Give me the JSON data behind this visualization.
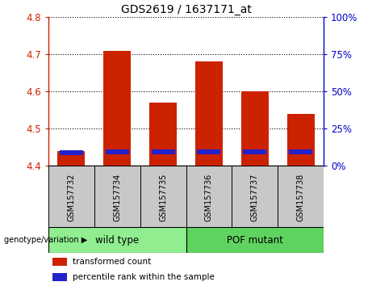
{
  "title": "GDS2619 / 1637171_at",
  "samples": [
    "GSM157732",
    "GSM157734",
    "GSM157735",
    "GSM157736",
    "GSM157737",
    "GSM157738"
  ],
  "red_values": [
    4.44,
    4.71,
    4.57,
    4.68,
    4.6,
    4.54
  ],
  "blue_values": [
    4.43,
    4.432,
    4.432,
    4.432,
    4.432,
    4.432
  ],
  "blue_heights": [
    0.012,
    0.012,
    0.012,
    0.012,
    0.012,
    0.012
  ],
  "ylim_left": [
    4.4,
    4.8
  ],
  "ylim_right": [
    0,
    100
  ],
  "yticks_left": [
    4.4,
    4.5,
    4.6,
    4.7,
    4.8
  ],
  "yticks_right": [
    0,
    25,
    50,
    75,
    100
  ],
  "bar_bottom": 4.4,
  "groups": [
    {
      "label": "wild type",
      "indices": [
        0,
        1,
        2
      ],
      "color": "#90EE90"
    },
    {
      "label": "POF mutant",
      "indices": [
        3,
        4,
        5
      ],
      "color": "#5FD35F"
    }
  ],
  "group_label": "genotype/variation",
  "legend_red": "transformed count",
  "legend_blue": "percentile rank within the sample",
  "bar_color_red": "#CC2200",
  "bar_color_blue": "#2222CC",
  "tick_color_left": "#CC2200",
  "tick_color_right": "#0000CC",
  "grid_color": "#000000",
  "bg_color_plot": "#FFFFFF",
  "bg_color_label": "#C8C8C8",
  "bar_width": 0.6
}
